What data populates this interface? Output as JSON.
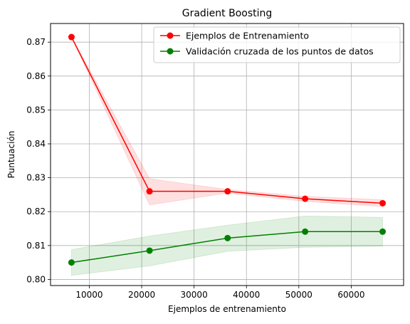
{
  "chart_data": {
    "type": "line",
    "title": "Gradient Boosting",
    "xlabel": "Ejemplos de entrenamiento",
    "ylabel": "Puntuación",
    "xlim": [
      2600,
      70000
    ],
    "ylim": [
      0.7982,
      0.8755
    ],
    "xticks": [
      10000,
      20000,
      30000,
      40000,
      50000,
      60000
    ],
    "yticks": [
      0.8,
      0.81,
      0.82,
      0.83,
      0.84,
      0.85,
      0.86,
      0.87
    ],
    "grid": true,
    "legend_position": "top-right",
    "x": [
      6600,
      21500,
      36400,
      51200,
      66000
    ],
    "series": [
      {
        "name": "Ejemplos de Entrenamiento",
        "color": "#ff0000",
        "band_color": "#ff0000",
        "values": [
          0.8715,
          0.826,
          0.826,
          0.8238,
          0.8225
        ],
        "band_upper": [
          0.8715,
          0.8297,
          0.8265,
          0.8245,
          0.8235
        ],
        "band_lower": [
          0.8715,
          0.822,
          0.8255,
          0.823,
          0.8215
        ]
      },
      {
        "name": "Validación cruzada de los puntos de datos",
        "color": "#008000",
        "band_color": "#008000",
        "values": [
          0.805,
          0.8085,
          0.8122,
          0.8141,
          0.8141
        ],
        "band_upper": [
          0.8088,
          0.8128,
          0.816,
          0.8187,
          0.8183
        ],
        "band_lower": [
          0.8012,
          0.804,
          0.8083,
          0.8095,
          0.8098
        ]
      }
    ]
  }
}
